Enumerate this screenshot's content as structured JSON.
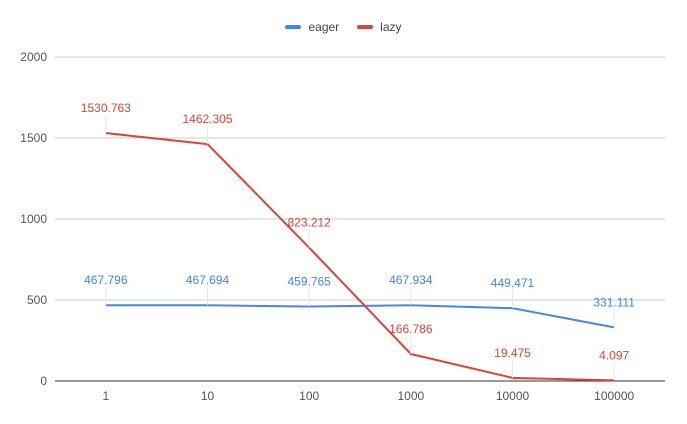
{
  "legend": [
    {
      "label": "eager",
      "color": "#4285f4"
    },
    {
      "label": "lazy",
      "color": "#db4437"
    }
  ],
  "chart_data": {
    "type": "line",
    "title": "",
    "xlabel": "",
    "ylabel": "",
    "categories": [
      "1",
      "10",
      "100",
      "1000",
      "10000",
      "100000"
    ],
    "series": [
      {
        "name": "eager",
        "color": "#4285f4",
        "values": [
          467.796,
          467.694,
          459.765,
          467.934,
          449.471,
          331.111
        ],
        "labels": [
          "467.796",
          "467.694",
          "459.765",
          "467.934",
          "449.471",
          "331.111"
        ]
      },
      {
        "name": "lazy",
        "color": "#db4437",
        "values": [
          1530.763,
          1462.305,
          823.212,
          166.786,
          19.475,
          4.097
        ],
        "labels": [
          "1530.763",
          "1462.305",
          "823.212",
          "166.786",
          "19.475",
          "4.097"
        ]
      }
    ],
    "yticks": [
      "0",
      "500",
      "1000",
      "1500",
      "2000"
    ],
    "ylim": [
      0,
      2000
    ],
    "grid": true,
    "legend_position": "top"
  }
}
